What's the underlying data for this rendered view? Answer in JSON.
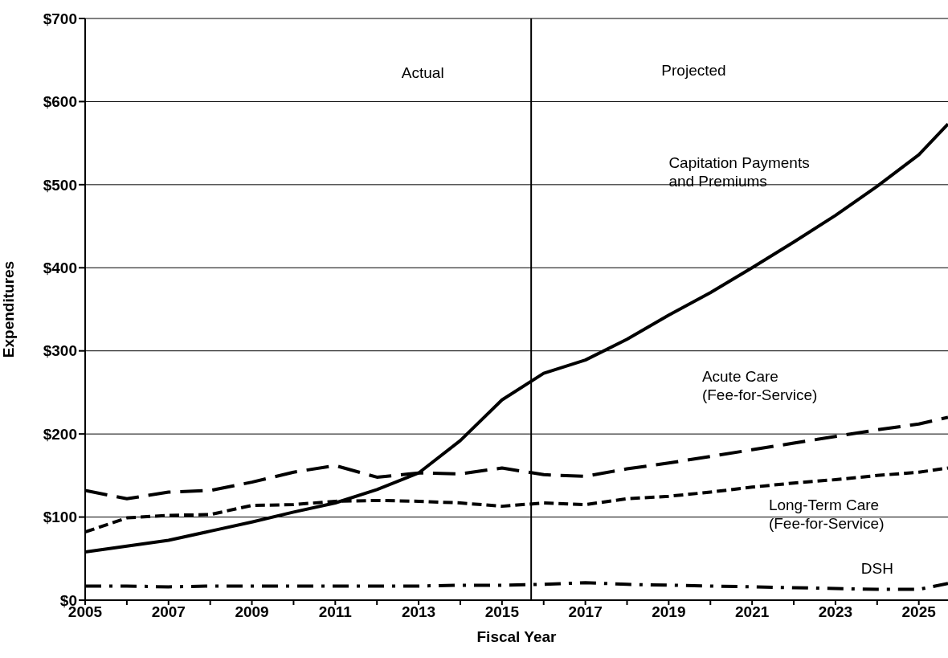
{
  "chart_data": {
    "type": "line",
    "xlabel": "Fiscal Year",
    "ylabel": "Expenditures",
    "x": [
      2005,
      2006,
      2007,
      2008,
      2009,
      2010,
      2011,
      2012,
      2013,
      2014,
      2015,
      2016,
      2017,
      2018,
      2019,
      2020,
      2021,
      2022,
      2023,
      2024,
      2025,
      2025.7
    ],
    "series": [
      {
        "name": "Capitation Payments and Premiums",
        "color": "#000000",
        "line_style": "solid",
        "values": [
          58,
          65,
          72,
          83,
          94,
          106,
          117,
          133,
          153,
          192,
          241,
          273,
          289,
          314,
          343,
          370,
          400,
          431,
          463,
          498,
          536,
          573
        ]
      },
      {
        "name": "Acute Care (Fee-for-Service)",
        "color": "#000000",
        "line_style": "dashed",
        "values": [
          132,
          122,
          130,
          132,
          142,
          154,
          162,
          148,
          153,
          152,
          159,
          151,
          149,
          158,
          165,
          173,
          181,
          189,
          197,
          205,
          212,
          220
        ]
      },
      {
        "name": "Long-Term Care (Fee-for-Service)",
        "color": "#000000",
        "line_style": "dotted",
        "values": [
          82,
          99,
          102,
          103,
          114,
          115,
          119,
          120,
          119,
          117,
          113,
          117,
          115,
          122,
          125,
          130,
          136,
          141,
          145,
          150,
          154,
          159
        ]
      },
      {
        "name": "DSH",
        "color": "#000000",
        "line_style": "dashdot",
        "values": [
          17,
          17,
          16,
          17,
          17,
          17,
          17,
          17,
          17,
          18,
          18,
          19,
          21,
          19,
          18,
          17,
          16,
          15,
          14,
          13,
          13,
          20
        ]
      }
    ],
    "xlim": [
      2005,
      2025.7
    ],
    "xticks": [
      2005,
      {
        "value": 2006,
        "label": null
      },
      2007,
      {
        "value": 2008,
        "label": null
      },
      2009,
      {
        "value": 2010,
        "label": null
      },
      2011,
      {
        "value": 2012,
        "label": null
      },
      2013,
      {
        "value": 2014,
        "label": null
      },
      2015,
      {
        "value": 2016,
        "label": null
      },
      2017,
      {
        "value": 2018,
        "label": null
      },
      2019,
      {
        "value": 2020,
        "label": null
      },
      2021,
      {
        "value": 2022,
        "label": null
      },
      2023,
      {
        "value": 2024,
        "label": null
      },
      2025
    ],
    "ylim": [
      0,
      700
    ],
    "yticks": [
      {
        "value": 0,
        "label": "$0"
      },
      {
        "value": 100,
        "label": "$100"
      },
      {
        "value": 200,
        "label": "$200"
      },
      {
        "value": 300,
        "label": "$300"
      },
      {
        "value": 400,
        "label": "$400"
      },
      {
        "value": 500,
        "label": "$500"
      },
      {
        "value": 600,
        "label": "$600"
      },
      {
        "value": 700,
        "label": "$700"
      }
    ],
    "grid": "y",
    "legend": false,
    "ref_lines": [
      {
        "axis": "x",
        "value": 2015.7,
        "color": "#000000"
      }
    ],
    "annotations": [
      "Actual",
      "Projected"
    ]
  }
}
